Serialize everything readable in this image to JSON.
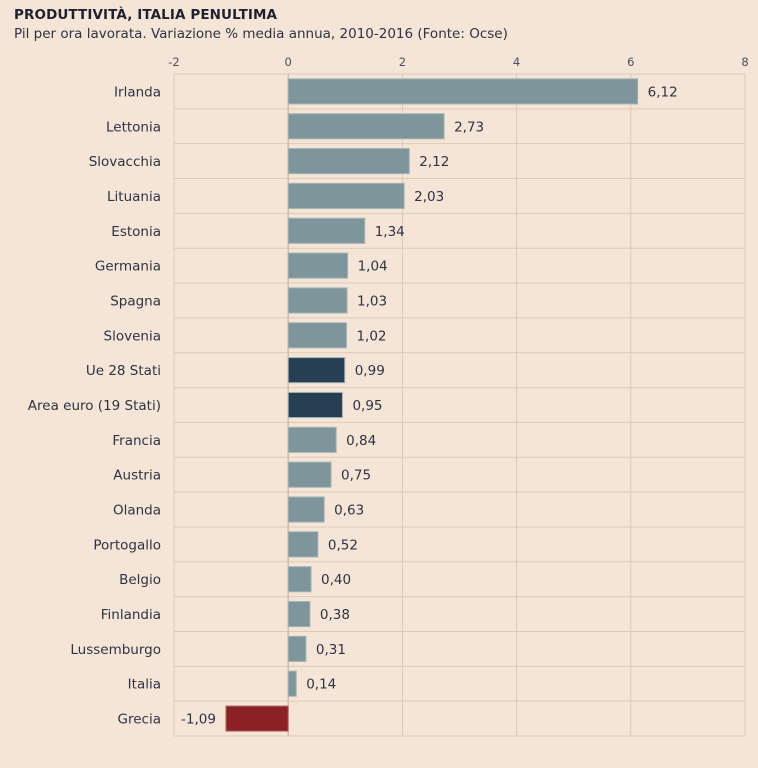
{
  "header": {
    "title": "PRODUTTIVITÀ, ITALIA PENULTIMA",
    "subtitle": "Pil per ora lavorata. Variazione % media annua, 2010-2016 (Fonte: Ocse)"
  },
  "colors": {
    "background": "#f5e5d6",
    "grid": "#dccab8",
    "bar_default": "#7e959b",
    "bar_aggregate": "#263f52",
    "bar_negative": "#8b2124"
  },
  "chart_data": {
    "type": "bar",
    "orientation": "horizontal",
    "title": "PRODUTTIVITÀ, ITALIA PENULTIMA",
    "subtitle": "Pil per ora lavorata. Variazione % media annua, 2010-2016 (Fonte: Ocse)",
    "xlabel": "",
    "ylabel": "",
    "xlim": [
      -2,
      8
    ],
    "xticks": [
      -2,
      0,
      2,
      4,
      6,
      8
    ],
    "xtick_labels": [
      "-2",
      "0",
      "2",
      "4",
      "6",
      "8"
    ],
    "grid": true,
    "axis_position": "top",
    "categories": [
      "Irlanda",
      "Lettonia",
      "Slovacchia",
      "Lituania",
      "Estonia",
      "Germania",
      "Spagna",
      "Slovenia",
      "Ue 28 Stati",
      "Area euro (19 Stati)",
      "Francia",
      "Austria",
      "Olanda",
      "Portogallo",
      "Belgio",
      "Finlandia",
      "Lussemburgo",
      "Italia",
      "Grecia"
    ],
    "values": [
      6.12,
      2.73,
      2.12,
      2.03,
      1.34,
      1.04,
      1.03,
      1.02,
      0.99,
      0.95,
      0.84,
      0.75,
      0.63,
      0.52,
      0.4,
      0.38,
      0.31,
      0.14,
      -1.09
    ],
    "value_labels": [
      "6,12",
      "2,73",
      "2,12",
      "2,03",
      "1,34",
      "1,04",
      "1,03",
      "1,02",
      "0,99",
      "0,95",
      "0,84",
      "0,75",
      "0,63",
      "0,52",
      "0,40",
      "0,38",
      "0,31",
      "0,14",
      "-1,09"
    ],
    "highlight": {
      "Ue 28 Stati": "aggregate",
      "Area euro (19 Stati)": "aggregate",
      "Grecia": "negative"
    }
  }
}
